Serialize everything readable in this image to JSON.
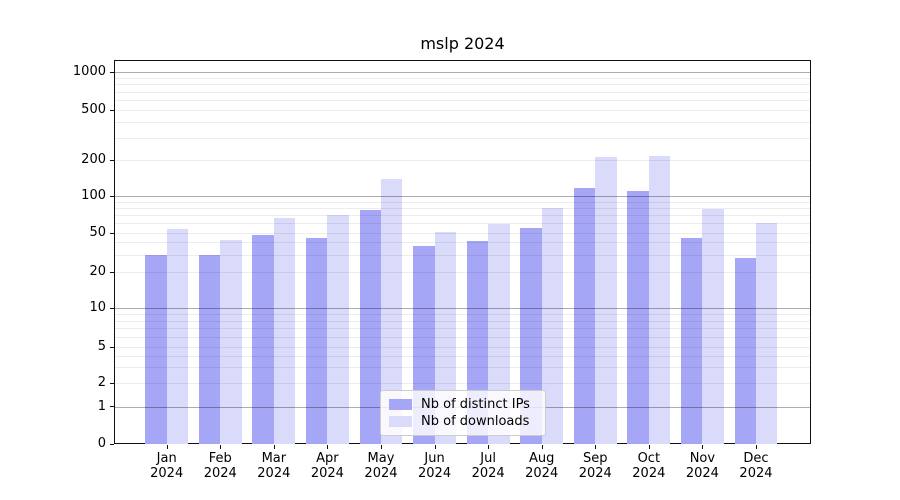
{
  "chart_data": {
    "type": "bar",
    "title": "mslp 2024",
    "categories": [
      "Jan",
      "Feb",
      "Mar",
      "Apr",
      "May",
      "Jun",
      "Jul",
      "Aug",
      "Sep",
      "Oct",
      "Nov",
      "Dec"
    ],
    "year_label": "2024",
    "series": [
      {
        "name": "Nb of distinct IPs",
        "color": "#a6a6f6",
        "values": [
          30,
          30,
          48,
          44,
          77,
          37,
          41,
          55,
          116,
          110,
          44,
          28
        ]
      },
      {
        "name": "Nb of downloads",
        "color": "#dadafa",
        "values": [
          54,
          42,
          66,
          70,
          140,
          51,
          59,
          80,
          210,
          215,
          78,
          60
        ]
      }
    ],
    "xlabel": "",
    "ylabel": "",
    "yscale": "symlog",
    "yticks": [
      0,
      1,
      2,
      5,
      10,
      20,
      50,
      100,
      200,
      500,
      1000
    ],
    "ylim": [
      0,
      1200
    ],
    "grid": true,
    "legend_position": "lower center"
  },
  "colors": {
    "spine": "#111111",
    "grid_major": "#aaaaaa",
    "grid_minor": "#e8e8e8",
    "background": "#ffffff"
  }
}
